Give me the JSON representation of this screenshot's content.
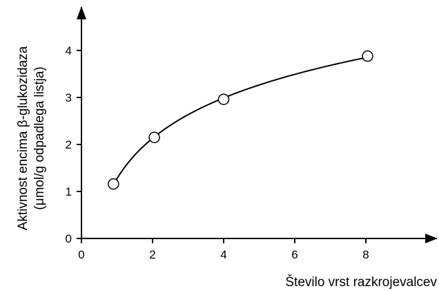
{
  "chart_data": {
    "type": "scatter",
    "title": "",
    "xlabel": "Število vrst razkrojevalcev",
    "ylabel_line1": "Aktivnost encima β-glukozidaza",
    "ylabel_line2": "(μmol/g odpadlega listja)",
    "xlim": [
      0,
      10
    ],
    "ylim": [
      0,
      4.8
    ],
    "x_ticks": [
      0,
      2,
      4,
      6,
      8
    ],
    "y_ticks": [
      0,
      1,
      2,
      3,
      4
    ],
    "grid": false,
    "points": [
      {
        "x": 0.9,
        "y": 1.16
      },
      {
        "x": 2.05,
        "y": 2.15
      },
      {
        "x": 4.0,
        "y": 2.96
      },
      {
        "x": 8.05,
        "y": 3.88
      }
    ],
    "fit_curve": true,
    "colors": {
      "line": "#000000",
      "marker_fill": "#ffffff"
    }
  }
}
